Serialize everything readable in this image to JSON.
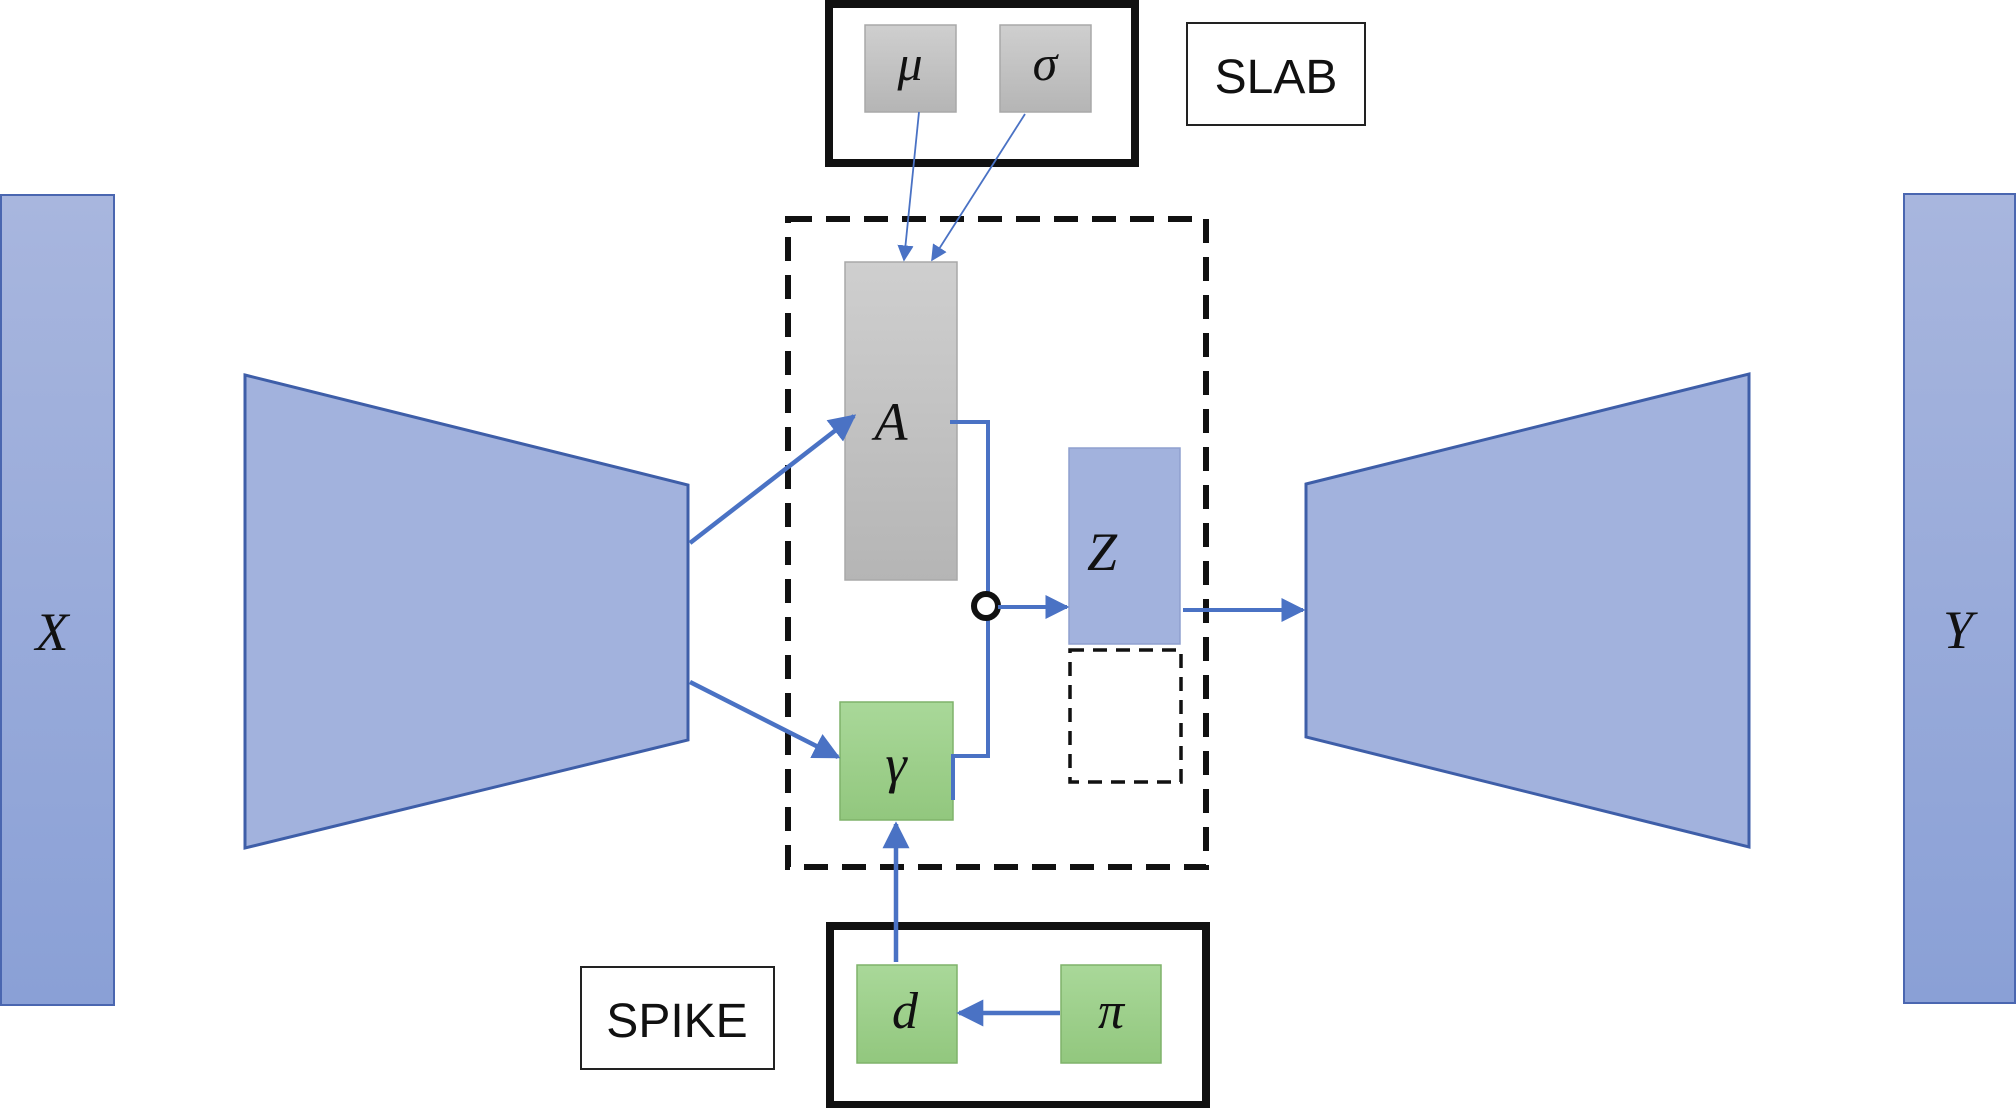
{
  "labels": {
    "x": "X",
    "y": "Y",
    "a": "A",
    "z": "Z",
    "gamma": "γ",
    "mu": "μ",
    "sigma": "σ",
    "d": "d",
    "pi": "π",
    "slab": "SLAB",
    "spike": "SPIKE"
  },
  "colors": {
    "blue_fill": "#a2b2dd",
    "blue_stroke": "#3e5ea8",
    "gray_fill": "#c4c4c4",
    "green_fill": "#9ed08b",
    "green_stroke": "#7fb26a",
    "arrow": "#4a72c4",
    "black": "#111111"
  }
}
